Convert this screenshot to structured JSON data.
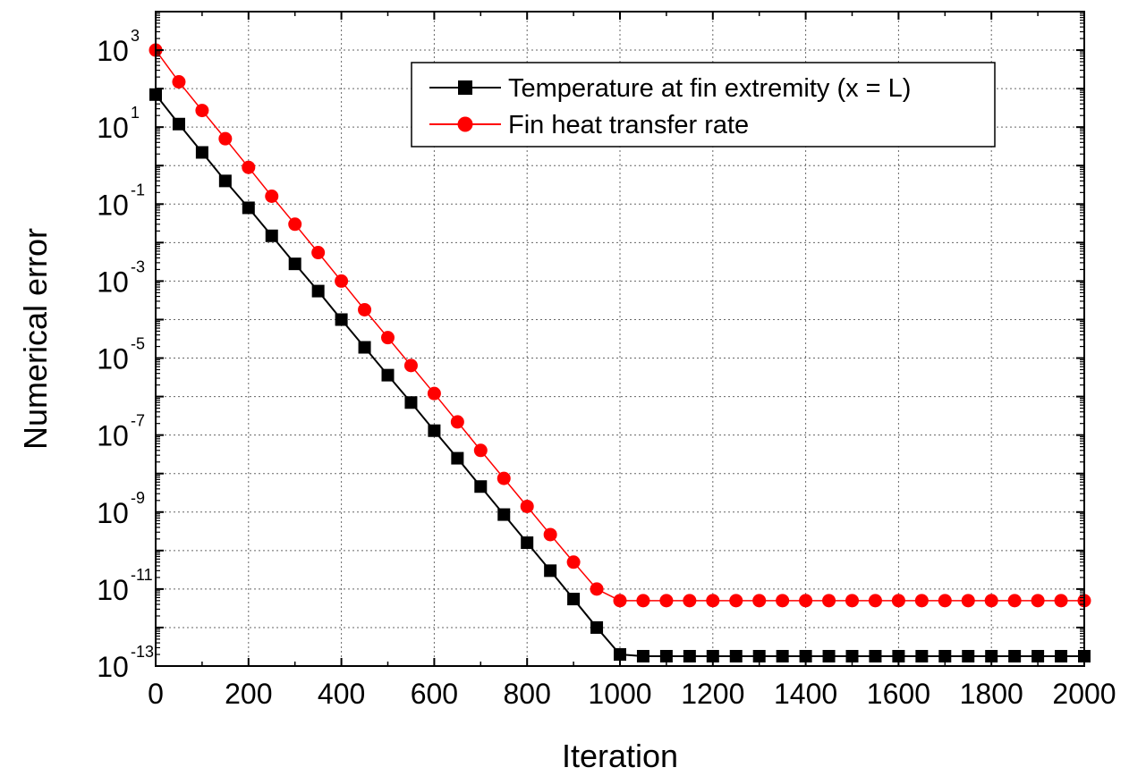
{
  "chart_data": {
    "type": "line",
    "xlabel": "Iteration",
    "ylabel": "Numerical error",
    "x_scale": "linear",
    "y_scale": "log",
    "xlim": [
      0,
      2000
    ],
    "ylim": [
      1e-13,
      10000.0
    ],
    "x_ticks": [
      "0",
      "200",
      "400",
      "600",
      "800",
      "1000",
      "1200",
      "1400",
      "1600",
      "1800",
      "2000"
    ],
    "y_ticks": [
      {
        "base": "10",
        "exp": "3"
      },
      {
        "base": "10",
        "exp": "1"
      },
      {
        "base": "10",
        "exp": "-1"
      },
      {
        "base": "10",
        "exp": "-3"
      },
      {
        "base": "10",
        "exp": "-5"
      },
      {
        "base": "10",
        "exp": "-7"
      },
      {
        "base": "10",
        "exp": "-9"
      },
      {
        "base": "10",
        "exp": "-11"
      },
      {
        "base": "10",
        "exp": "-13"
      }
    ],
    "grid": true,
    "legend_position": "top-right",
    "series": [
      {
        "name": "Temperature at fin extremity (x = L)",
        "color": "#000000",
        "marker": "square",
        "x": [
          0,
          50,
          100,
          150,
          200,
          250,
          300,
          350,
          400,
          450,
          500,
          550,
          600,
          650,
          700,
          750,
          800,
          850,
          900,
          950,
          1000,
          1050,
          1100,
          1150,
          1200,
          1250,
          1300,
          1350,
          1400,
          1450,
          1500,
          1550,
          1600,
          1650,
          1700,
          1750,
          1800,
          1850,
          1900,
          1950,
          2000
        ],
        "y": [
          70,
          12,
          2.2,
          0.4,
          0.08,
          0.015,
          0.0028,
          0.00055,
          0.0001,
          1.9e-05,
          3.6e-06,
          7e-07,
          1.3e-07,
          2.5e-08,
          4.6e-09,
          8.6e-10,
          1.6e-10,
          3e-11,
          5.5e-12,
          1e-12,
          2e-13,
          1.8e-13,
          1.8e-13,
          1.8e-13,
          1.8e-13,
          1.8e-13,
          1.8e-13,
          1.8e-13,
          1.8e-13,
          1.8e-13,
          1.8e-13,
          1.8e-13,
          1.8e-13,
          1.8e-13,
          1.8e-13,
          1.8e-13,
          1.8e-13,
          1.8e-13,
          1.8e-13,
          1.8e-13,
          1.8e-13
        ]
      },
      {
        "name": "Fin heat transfer rate",
        "color": "#ff0000",
        "marker": "circle",
        "x": [
          0,
          50,
          100,
          150,
          200,
          250,
          300,
          350,
          400,
          450,
          500,
          550,
          600,
          650,
          700,
          750,
          800,
          850,
          900,
          950,
          1000,
          1050,
          1100,
          1150,
          1200,
          1250,
          1300,
          1350,
          1400,
          1450,
          1500,
          1550,
          1600,
          1650,
          1700,
          1750,
          1800,
          1850,
          1900,
          1950,
          2000
        ],
        "y": [
          1000,
          150,
          27,
          5,
          0.9,
          0.16,
          0.03,
          0.0055,
          0.001,
          0.00018,
          3.4e-05,
          6.4e-06,
          1.2e-06,
          2.2e-07,
          4e-08,
          7.5e-09,
          1.4e-09,
          2.6e-10,
          5e-11,
          1e-11,
          5e-12,
          5e-12,
          5e-12,
          5e-12,
          5e-12,
          5e-12,
          5e-12,
          5e-12,
          5e-12,
          5e-12,
          5e-12,
          5e-12,
          5e-12,
          5e-12,
          5e-12,
          5e-12,
          5e-12,
          5e-12,
          5e-12,
          5e-12,
          5e-12
        ]
      }
    ]
  }
}
